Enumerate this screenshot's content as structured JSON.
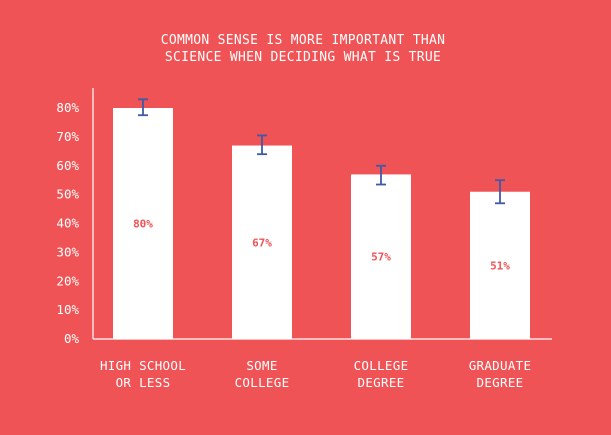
{
  "colors": {
    "background": "#f05355",
    "bar": "#ffffff",
    "text": "#ffffff",
    "axis": "#ffffff",
    "error_bar": "#3f5aa6",
    "value_label": "#f05355"
  },
  "chart_data": {
    "type": "bar",
    "title_lines": [
      "COMMON SENSE IS MORE IMPORTANT THAN",
      "SCIENCE WHEN DECIDING WHAT IS TRUE"
    ],
    "categories": [
      [
        "HIGH SCHOOL",
        "OR LESS"
      ],
      [
        "SOME",
        "COLLEGE"
      ],
      [
        "COLLEGE",
        "DEGREE"
      ],
      [
        "GRADUATE",
        "DEGREE"
      ]
    ],
    "values": [
      80,
      67,
      57,
      51
    ],
    "value_labels": [
      "80%",
      "67%",
      "57%",
      "51%"
    ],
    "error_low": [
      77.5,
      64,
      53.5,
      47
    ],
    "error_high": [
      83,
      70.5,
      60,
      55
    ],
    "yticks": [
      0,
      10,
      20,
      30,
      40,
      50,
      60,
      70,
      80
    ],
    "ytick_labels": [
      "0%",
      "10%",
      "20%",
      "30%",
      "40%",
      "50%",
      "60%",
      "70%",
      "80%"
    ],
    "ylim": [
      0,
      85
    ],
    "xlabel": "",
    "ylabel": "",
    "grid": false,
    "legend": "none"
  }
}
